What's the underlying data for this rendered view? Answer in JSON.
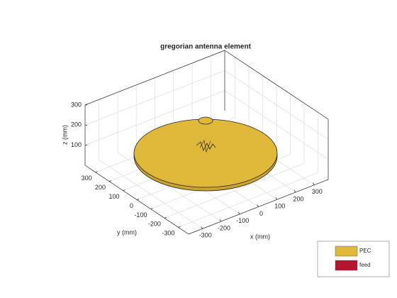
{
  "chart_data": {
    "type": "antenna3d",
    "title": "gregorian antenna element",
    "xlabel": "x (mm)",
    "ylabel": "y (mm)",
    "zlabel": "z (mm)",
    "xlim": [
      -375,
      375
    ],
    "ylim": [
      -375,
      375
    ],
    "zlim": [
      0,
      300
    ],
    "xticks": [
      -300,
      -200,
      -100,
      0,
      100,
      200,
      300
    ],
    "yticks": [
      -300,
      -200,
      -100,
      0,
      100,
      200,
      300
    ],
    "zticks": [
      100,
      200,
      300
    ],
    "grid": true,
    "legend": [
      {
        "name": "PEC",
        "color": "#e0b83a"
      },
      {
        "name": "feed",
        "color": "#b5152e"
      }
    ]
  }
}
